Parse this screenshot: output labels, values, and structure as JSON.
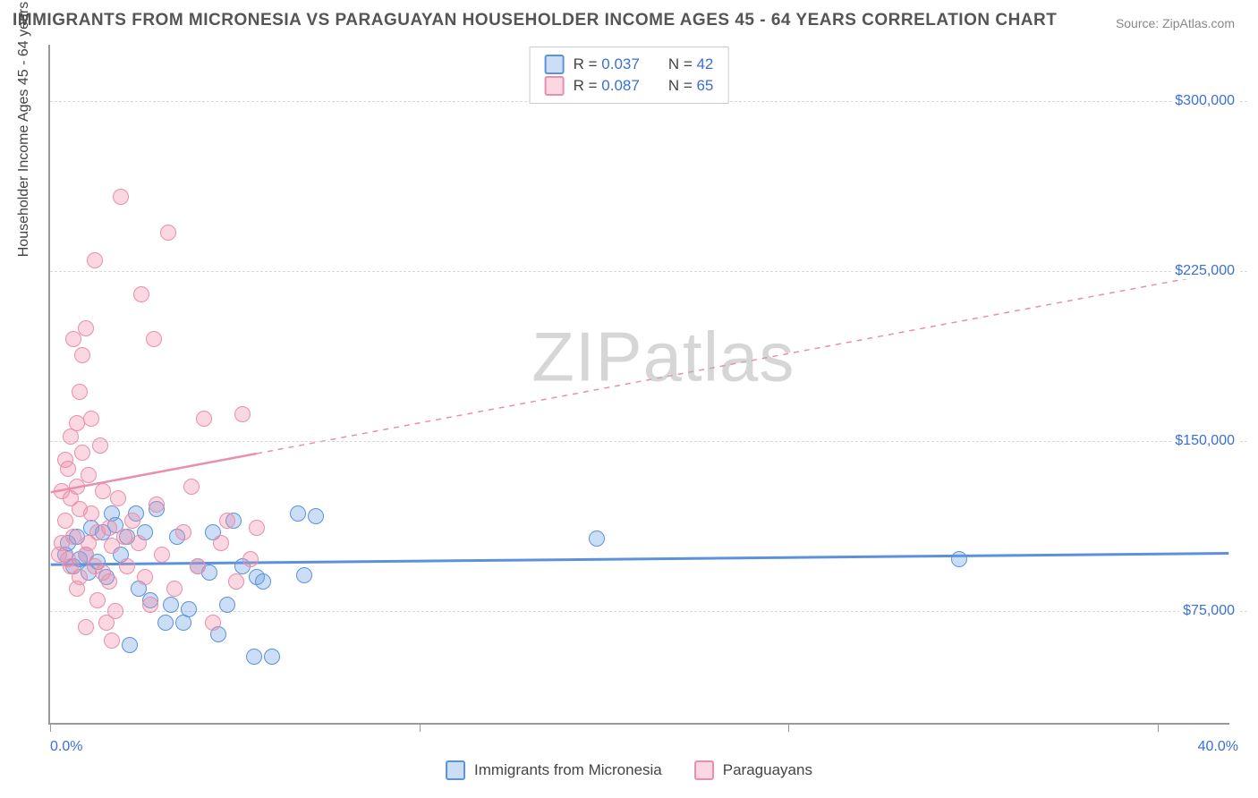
{
  "title": "IMMIGRANTS FROM MICRONESIA VS PARAGUAYAN HOUSEHOLDER INCOME AGES 45 - 64 YEARS CORRELATION CHART",
  "source": "Source: ZipAtlas.com",
  "watermark_a": "ZIP",
  "watermark_b": "atlas",
  "yaxis_title": "Householder Income Ages 45 - 64 years",
  "chart": {
    "type": "scatter",
    "background_color": "#ffffff",
    "grid_color": "#d9d9d9",
    "axis_color": "#999999",
    "xlim": [
      0,
      40
    ],
    "ylim": [
      25000,
      325000
    ],
    "xticks_pct": [
      0,
      12.5,
      25,
      37.5
    ],
    "yticks": [
      {
        "v": 75000,
        "label": "$75,000"
      },
      {
        "v": 150000,
        "label": "$150,000"
      },
      {
        "v": 225000,
        "label": "$225,000"
      },
      {
        "v": 300000,
        "label": "$300,000"
      }
    ],
    "xaxis_left_label": "0.0%",
    "xaxis_right_label": "40.0%",
    "point_radius": 9,
    "label_fontsize": 16,
    "value_color": "#3b6fd6",
    "series": [
      {
        "key": "micronesia",
        "name": "Immigrants from Micronesia",
        "fill": "rgba(108,160,230,0.35)",
        "stroke": "#5a93db",
        "R": "0.037",
        "N": "42",
        "trend": {
          "x1": 0,
          "y1": 95000,
          "x2": 40,
          "y2": 100000,
          "dashed_from": 40
        },
        "points": [
          [
            0.5,
            100000
          ],
          [
            0.6,
            105000
          ],
          [
            0.8,
            95000
          ],
          [
            0.9,
            108000
          ],
          [
            1.0,
            98000
          ],
          [
            1.2,
            100000
          ],
          [
            1.3,
            92000
          ],
          [
            1.4,
            112000
          ],
          [
            1.6,
            97000
          ],
          [
            1.8,
            110000
          ],
          [
            1.9,
            90000
          ],
          [
            2.1,
            118000
          ],
          [
            2.2,
            113000
          ],
          [
            2.4,
            100000
          ],
          [
            2.6,
            108000
          ],
          [
            2.7,
            60000
          ],
          [
            2.9,
            118000
          ],
          [
            3.0,
            85000
          ],
          [
            3.2,
            110000
          ],
          [
            3.4,
            80000
          ],
          [
            3.6,
            120000
          ],
          [
            3.9,
            70000
          ],
          [
            4.1,
            78000
          ],
          [
            4.3,
            108000
          ],
          [
            4.5,
            70000
          ],
          [
            4.7,
            76000
          ],
          [
            5.0,
            95000
          ],
          [
            5.4,
            92000
          ],
          [
            5.5,
            110000
          ],
          [
            5.7,
            65000
          ],
          [
            6.0,
            78000
          ],
          [
            6.2,
            115000
          ],
          [
            6.5,
            95000
          ],
          [
            6.9,
            55000
          ],
          [
            7.0,
            90000
          ],
          [
            7.2,
            88000
          ],
          [
            7.5,
            55000
          ],
          [
            8.4,
            118000
          ],
          [
            8.6,
            91000
          ],
          [
            9.0,
            117000
          ],
          [
            18.5,
            107000
          ],
          [
            30.8,
            98000
          ]
        ]
      },
      {
        "key": "paraguayans",
        "name": "Paraguayans",
        "fill": "rgba(240,140,170,0.35)",
        "stroke": "#e78fac",
        "R": "0.087",
        "N": "65",
        "trend": {
          "x1": 0,
          "y1": 127000,
          "x2": 40,
          "y2": 225000,
          "dashed_from": 7
        },
        "points": [
          [
            0.3,
            100000
          ],
          [
            0.4,
            105000
          ],
          [
            0.4,
            128000
          ],
          [
            0.5,
            115000
          ],
          [
            0.5,
            142000
          ],
          [
            0.6,
            98000
          ],
          [
            0.6,
            138000
          ],
          [
            0.7,
            125000
          ],
          [
            0.7,
            152000
          ],
          [
            0.8,
            108000
          ],
          [
            0.8,
            195000
          ],
          [
            0.9,
            130000
          ],
          [
            0.9,
            158000
          ],
          [
            1.0,
            120000
          ],
          [
            1.0,
            172000
          ],
          [
            1.1,
            145000
          ],
          [
            1.1,
            188000
          ],
          [
            1.2,
            100000
          ],
          [
            1.2,
            200000
          ],
          [
            1.3,
            135000
          ],
          [
            1.3,
            105000
          ],
          [
            1.4,
            160000
          ],
          [
            1.4,
            118000
          ],
          [
            1.5,
            230000
          ],
          [
            1.5,
            95000
          ],
          [
            1.6,
            110000
          ],
          [
            1.7,
            148000
          ],
          [
            1.8,
            92000
          ],
          [
            1.8,
            128000
          ],
          [
            1.9,
            70000
          ],
          [
            2.0,
            112000
          ],
          [
            2.0,
            88000
          ],
          [
            2.1,
            104000
          ],
          [
            2.2,
            75000
          ],
          [
            2.3,
            125000
          ],
          [
            2.4,
            258000
          ],
          [
            2.5,
            108000
          ],
          [
            2.6,
            95000
          ],
          [
            2.8,
            115000
          ],
          [
            3.0,
            105000
          ],
          [
            3.1,
            215000
          ],
          [
            3.2,
            90000
          ],
          [
            3.4,
            78000
          ],
          [
            3.5,
            195000
          ],
          [
            3.6,
            122000
          ],
          [
            3.8,
            100000
          ],
          [
            4.0,
            242000
          ],
          [
            4.2,
            85000
          ],
          [
            4.5,
            110000
          ],
          [
            4.8,
            130000
          ],
          [
            5.0,
            95000
          ],
          [
            5.2,
            160000
          ],
          [
            5.5,
            70000
          ],
          [
            5.8,
            105000
          ],
          [
            6.0,
            115000
          ],
          [
            6.3,
            88000
          ],
          [
            6.5,
            162000
          ],
          [
            6.8,
            98000
          ],
          [
            7.0,
            112000
          ],
          [
            1.0,
            90000
          ],
          [
            1.2,
            68000
          ],
          [
            1.6,
            80000
          ],
          [
            0.7,
            95000
          ],
          [
            0.9,
            85000
          ],
          [
            2.1,
            62000
          ]
        ]
      }
    ]
  },
  "legend_bottom": [
    {
      "series": 0
    },
    {
      "series": 1
    }
  ]
}
